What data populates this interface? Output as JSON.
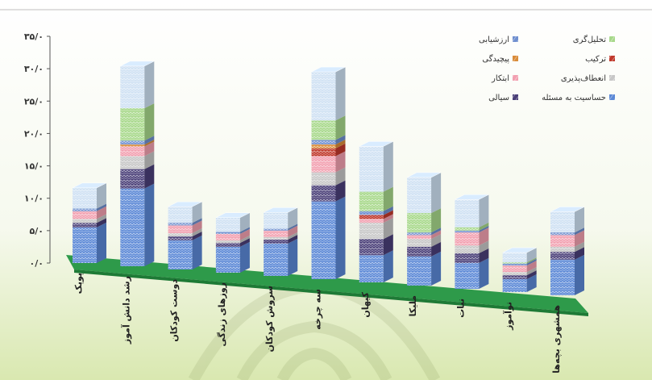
{
  "chart_data": {
    "type": "bar",
    "stacked": true,
    "three_d": true,
    "ylim": [
      0,
      35
    ],
    "y_ticks": [
      "۰/۰",
      "۵/۰",
      "۱۰/۰",
      "۱۵/۰",
      "۲۰/۰",
      "۲۵/۰",
      "۳۰/۰",
      "۳۵/۰"
    ],
    "grid": false,
    "legend_placement": "top-right",
    "categories": [
      "پوپک",
      "رشد دانش آموز",
      "دوست کودکان",
      "روزهای زندگی",
      "سروش کودکان",
      "سه چرخه",
      "کیهان",
      "ملیکا",
      "نبات",
      "نوآموز",
      "همشهری بچه‌ها"
    ],
    "series": [
      {
        "name": "حساسیت به مسئله",
        "color": "#5b88d6",
        "values": [
          5.5,
          12,
          4.5,
          4,
          5,
          12,
          4.2,
          4.5,
          4,
          2,
          5.5
        ]
      },
      {
        "name": "سیالی",
        "color": "#4a3f78",
        "values": [
          0.7,
          3,
          0.6,
          0.6,
          0.6,
          2.5,
          2.5,
          1.5,
          1.5,
          0.6,
          1.2
        ]
      },
      {
        "name": "انعطاف‌پذیری",
        "color": "#c7c7c7",
        "values": [
          0.6,
          2,
          0.5,
          0.4,
          0.4,
          2,
          2.5,
          1.2,
          1.2,
          0.5,
          0.8
        ]
      },
      {
        "name": "ابتکار",
        "color": "#f2a0b0",
        "values": [
          1.2,
          1.5,
          1.2,
          1,
          1,
          2.5,
          0.6,
          0.6,
          2,
          1,
          1.8
        ]
      },
      {
        "name": "ترکیب",
        "color": "#c0392b",
        "values": [
          0,
          0,
          0,
          0,
          0,
          1.2,
          0.6,
          0,
          0,
          0,
          0
        ]
      },
      {
        "name": "پیچیدگی",
        "color": "#d98c3a",
        "values": [
          0,
          0.3,
          0,
          0,
          0,
          0.6,
          0,
          0,
          0,
          0,
          0
        ]
      },
      {
        "name": "ارزشیابی",
        "color": "#6f8fcf",
        "values": [
          0.4,
          0.6,
          0.4,
          0.3,
          0.3,
          0.7,
          0.6,
          0.4,
          0.3,
          0.3,
          0.4
        ]
      },
      {
        "name": "تحلیل‌گری",
        "color": "#a7d88a",
        "values": [
          0,
          5,
          0,
          0,
          0,
          3,
          3,
          3,
          0.5,
          0.2,
          0
        ]
      },
      {
        "name": "",
        "color": "#cfe1f3",
        "values": [
          3.2,
          6.5,
          2.5,
          2.2,
          2.5,
          7.5,
          7,
          5.5,
          4.3,
          1.5,
          3.2
        ]
      }
    ],
    "legend": [
      {
        "label": "تحلیل‌گری",
        "color": "#a7d88a"
      },
      {
        "label": "ارزشیابی",
        "color": "#6f8fcf"
      },
      {
        "label": "ترکیب",
        "color": "#c0392b"
      },
      {
        "label": "پیچیدگی",
        "color": "#d98c3a"
      },
      {
        "label": "انعطاف‌پذیری",
        "color": "#c7c7c7"
      },
      {
        "label": "ابتکار",
        "color": "#f2a0b0"
      },
      {
        "label": "حساسیت به مسئله",
        "color": "#5b88d6"
      },
      {
        "label": "سیالی",
        "color": "#4a3f78"
      }
    ]
  },
  "colors": {
    "floor": "#2e9a4a",
    "floor_edge": "#1e7a36",
    "axis": "#555555",
    "background_bottom": "#dde9b6"
  }
}
